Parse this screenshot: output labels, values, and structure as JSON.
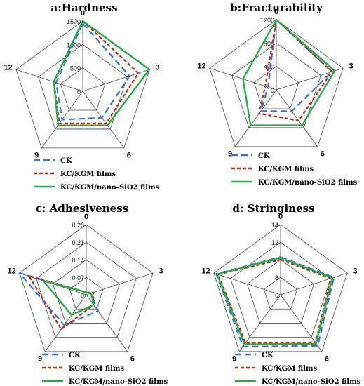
{
  "legend": [
    {
      "label": "CK",
      "color": "#3b6fd6",
      "dash": "9,5"
    },
    {
      "label": "KC/KGM films",
      "color": "#b0301c",
      "dash": "5,3"
    },
    {
      "label": "KC/KGM/nano-SiO2 films",
      "color": "#2da84a",
      "dash": ""
    }
  ],
  "chart_data": [
    {
      "type": "radar",
      "title": "a:Hardness",
      "axes": [
        "0",
        "3",
        "6",
        "9",
        "12"
      ],
      "rlim": [
        0,
        1500
      ],
      "ticks": [
        0,
        500,
        1000,
        1500
      ],
      "tick_labels": [
        "0",
        "500",
        "1000",
        "1500"
      ],
      "series": [
        {
          "name": "CK",
          "values": [
            1450,
            1050,
            700,
            750,
            600
          ]
        },
        {
          "name": "KC/KGM films",
          "values": [
            1500,
            1250,
            850,
            850,
            650
          ]
        },
        {
          "name": "KC/KGM/nano-SiO2 films",
          "values": [
            1500,
            1500,
            900,
            900,
            650
          ]
        }
      ]
    },
    {
      "type": "radar",
      "title": "b:Fracturability",
      "axes": [
        "0",
        "3",
        "6",
        "9",
        "12"
      ],
      "rlim": [
        0,
        1200
      ],
      "ticks": [
        0,
        400,
        800,
        1200
      ],
      "tick_labels": [
        "0",
        "400",
        "800",
        "1200"
      ],
      "series": [
        {
          "name": "CK",
          "values": [
            1200,
            1000,
            450,
            450,
            150
          ]
        },
        {
          "name": "KC/KGM films",
          "values": [
            1200,
            1000,
            650,
            500,
            200
          ]
        },
        {
          "name": "KC/KGM/nano-SiO2 films",
          "values": [
            1200,
            1050,
            750,
            750,
            600
          ]
        }
      ]
    },
    {
      "type": "radar",
      "title": "c: Adhesiveness",
      "axes": [
        "0",
        "3",
        "6",
        "9",
        "12"
      ],
      "rlim": [
        0,
        0.28
      ],
      "ticks": [
        0,
        0.07,
        0.14,
        0.21,
        0.28
      ],
      "tick_labels": [
        "0",
        "0.07",
        "0.14",
        "0.21",
        "0.28"
      ],
      "series": [
        {
          "name": "CK",
          "values": [
            0.01,
            0.02,
            0.08,
            0.15,
            0.28
          ]
        },
        {
          "name": "KC/KGM films",
          "values": [
            0.01,
            0.03,
            0.05,
            0.17,
            0.24
          ]
        },
        {
          "name": "KC/KGM/nano-SiO2 films",
          "values": [
            0.01,
            0.02,
            0.05,
            0.1,
            0.18
          ]
        }
      ]
    },
    {
      "type": "radar",
      "title": "d: Stringiness",
      "axes": [
        "0",
        "3",
        "6",
        "9",
        "12"
      ],
      "rlim": [
        6,
        14
      ],
      "ticks": [
        6,
        8,
        10,
        12,
        14
      ],
      "tick_labels": [
        "6",
        "8",
        "10",
        "12",
        "14"
      ],
      "series": [
        {
          "name": "CK",
          "values": [
            10.3,
            12.4,
            13.2,
            13.3,
            13.7
          ]
        },
        {
          "name": "KC/KGM films",
          "values": [
            10,
            12,
            12.8,
            12.8,
            13.5
          ]
        },
        {
          "name": "KC/KGM/nano-SiO2 films",
          "values": [
            10.2,
            12.2,
            12.9,
            13.0,
            13.6
          ]
        }
      ]
    }
  ]
}
